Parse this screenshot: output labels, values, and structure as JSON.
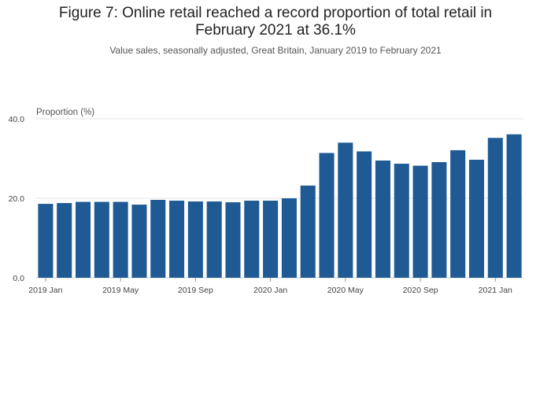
{
  "chart_data": {
    "type": "bar",
    "title": "Figure 7: Online retail reached a record proportion of total retail in\nFebruary 2021 at 36.1%",
    "subtitle": "Value sales, seasonally adjusted, Great Britain, January 2019 to February 2021",
    "ylabel": "Proportion (%)",
    "xlabel": "",
    "ylim": [
      0,
      40
    ],
    "yticks": [
      "0.0",
      "20.0",
      "40.0"
    ],
    "ytick_values": [
      0,
      20,
      40
    ],
    "grid": true,
    "bar_color": "#1f5a94",
    "x": [
      "2019-01",
      "2019-02",
      "2019-03",
      "2019-04",
      "2019-05",
      "2019-06",
      "2019-07",
      "2019-08",
      "2019-09",
      "2019-10",
      "2019-11",
      "2019-12",
      "2020-01",
      "2020-02",
      "2020-03",
      "2020-04",
      "2020-05",
      "2020-06",
      "2020-07",
      "2020-08",
      "2020-09",
      "2020-10",
      "2020-11",
      "2020-12",
      "2021-01",
      "2021-02"
    ],
    "values": [
      18.6,
      18.8,
      19.1,
      19.1,
      19.1,
      18.4,
      19.6,
      19.4,
      19.2,
      19.2,
      19.0,
      19.4,
      19.4,
      20.0,
      23.2,
      31.4,
      34.0,
      31.8,
      29.5,
      28.7,
      28.2,
      29.1,
      32.1,
      29.7,
      35.2,
      36.1
    ],
    "xtick_labels": [
      {
        "label": "2019 Jan",
        "index": 0
      },
      {
        "label": "2019 May",
        "index": 4
      },
      {
        "label": "2019 Sep",
        "index": 8
      },
      {
        "label": "2020 Jan",
        "index": 12
      },
      {
        "label": "2020 May",
        "index": 16
      },
      {
        "label": "2020 Sep",
        "index": 20
      },
      {
        "label": "2021 Jan",
        "index": 24
      }
    ]
  }
}
